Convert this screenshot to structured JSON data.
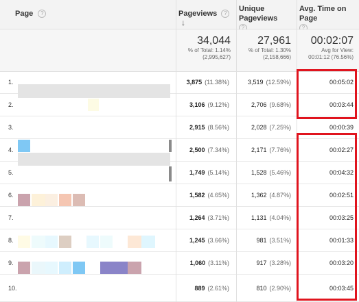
{
  "header": {
    "page_label": "Page",
    "pageviews_label": "Pageviews",
    "unique_label": "Unique Pageviews",
    "avgtime_label": "Avg. Time on Page"
  },
  "totals": {
    "pageviews": "34,044",
    "pageviews_sub1": "% of Total: 1.14%",
    "pageviews_sub2": "(2,995,627)",
    "unique": "27,961",
    "unique_sub1": "% of Total: 1.30%",
    "unique_sub2": "(2,158,666)",
    "avgtime": "00:02:07",
    "avgtime_sub1": "Avg for View:",
    "avgtime_sub2": "00:01:12 (76.56%)"
  },
  "rows": [
    {
      "n": "1.",
      "pv": "3,875",
      "pv_pct": "(11.38%)",
      "upv": "3,519",
      "upv_pct": "(12.59%)",
      "atp": "00:05:02"
    },
    {
      "n": "2.",
      "pv": "3,106",
      "pv_pct": "(9.12%)",
      "upv": "2,706",
      "upv_pct": "(9.68%)",
      "atp": "00:03:44"
    },
    {
      "n": "3.",
      "pv": "2,915",
      "pv_pct": "(8.56%)",
      "upv": "2,028",
      "upv_pct": "(7.25%)",
      "atp": "00:00:39"
    },
    {
      "n": "4.",
      "pv": "2,500",
      "pv_pct": "(7.34%)",
      "upv": "2,171",
      "upv_pct": "(7.76%)",
      "atp": "00:02:27"
    },
    {
      "n": "5.",
      "pv": "1,749",
      "pv_pct": "(5.14%)",
      "upv": "1,528",
      "upv_pct": "(5.46%)",
      "atp": "00:04:32"
    },
    {
      "n": "6.",
      "pv": "1,582",
      "pv_pct": "(4.65%)",
      "upv": "1,362",
      "upv_pct": "(4.87%)",
      "atp": "00:02:51"
    },
    {
      "n": "7.",
      "pv": "1,264",
      "pv_pct": "(3.71%)",
      "upv": "1,131",
      "upv_pct": "(4.04%)",
      "atp": "00:03:25"
    },
    {
      "n": "8.",
      "pv": "1,245",
      "pv_pct": "(3.66%)",
      "upv": "981",
      "upv_pct": "(3.51%)",
      "atp": "00:01:33"
    },
    {
      "n": "9.",
      "pv": "1,060",
      "pv_pct": "(3.11%)",
      "upv": "917",
      "upv_pct": "(3.28%)",
      "atp": "00:03:20"
    },
    {
      "n": "10.",
      "pv": "889",
      "pv_pct": "(2.61%)",
      "upv": "810",
      "upv_pct": "(2.90%)",
      "atp": "00:03:45"
    }
  ],
  "colors": {
    "highlight": "#e0141e",
    "header_bg": "#f3f3f3"
  }
}
